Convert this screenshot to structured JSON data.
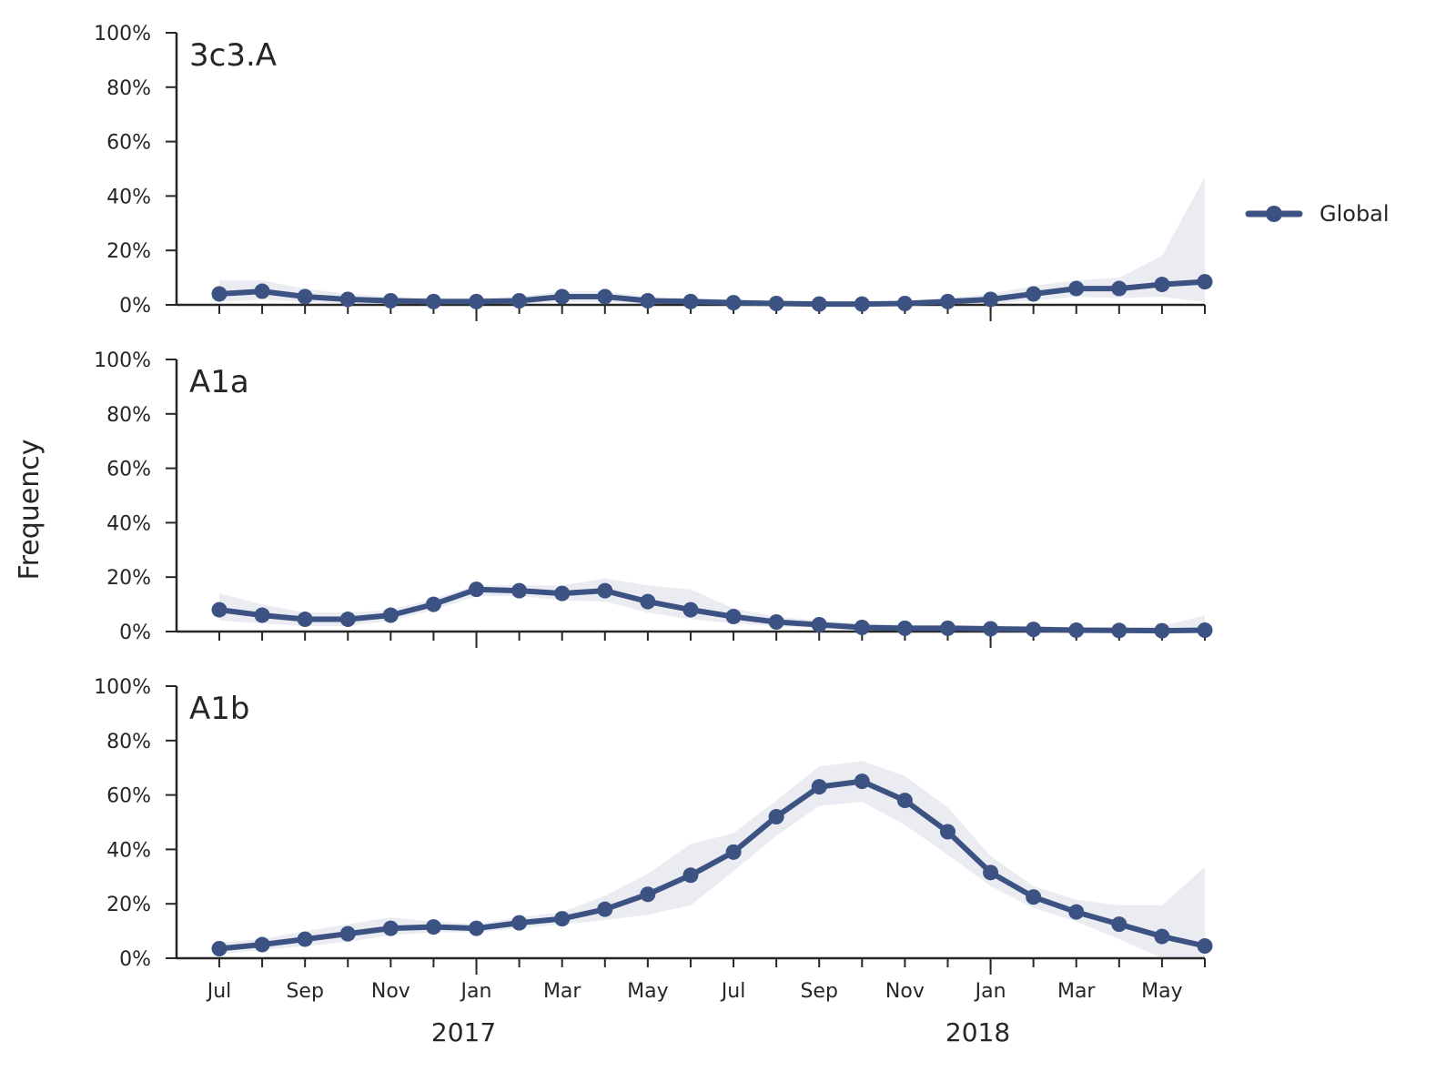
{
  "figure": {
    "ylabel": "Frequency",
    "legend": {
      "label": "Global",
      "placement": "right"
    },
    "colors": {
      "line": "#3c5282",
      "band": "#eaecf2",
      "axis": "#262626",
      "text": "#262626"
    }
  },
  "chart_data": [
    {
      "type": "line",
      "title": "3c3.A",
      "ylim": [
        0,
        100
      ],
      "yticks": [
        "0%",
        "20%",
        "40%",
        "60%",
        "80%",
        "100%"
      ],
      "x": [
        "2016-07",
        "2016-08",
        "2016-09",
        "2016-10",
        "2016-11",
        "2016-12",
        "2017-01",
        "2017-02",
        "2017-03",
        "2017-04",
        "2017-05",
        "2017-06",
        "2017-07",
        "2017-08",
        "2017-09",
        "2017-10",
        "2017-11",
        "2017-12",
        "2018-01",
        "2018-02",
        "2018-03",
        "2018-04",
        "2018-05",
        "2018-06"
      ],
      "series": [
        {
          "name": "Global",
          "values": [
            4,
            5,
            3,
            2,
            1.5,
            1.2,
            1.2,
            1.5,
            3,
            3,
            1.5,
            1.2,
            0.8,
            0.5,
            0.3,
            0.3,
            0.5,
            1.2,
            2,
            4,
            6,
            6,
            7.5,
            8.5
          ],
          "lower": [
            1,
            2,
            1,
            0.5,
            0.3,
            0.2,
            0.2,
            0.3,
            1,
            1,
            0.3,
            0.2,
            0.1,
            0,
            0,
            0,
            0,
            0.3,
            0.5,
            1.5,
            3,
            2.5,
            3,
            1
          ],
          "upper": [
            9,
            9,
            6,
            4,
            3,
            2.5,
            2.5,
            3,
            5,
            5,
            3,
            2.5,
            2,
            1.2,
            1,
            1,
            1.5,
            2.5,
            4,
            7,
            9,
            10,
            18,
            47
          ]
        }
      ]
    },
    {
      "type": "line",
      "title": "A1a",
      "ylim": [
        0,
        100
      ],
      "yticks": [
        "0%",
        "20%",
        "40%",
        "60%",
        "80%",
        "100%"
      ],
      "x": [
        "2016-07",
        "2016-08",
        "2016-09",
        "2016-10",
        "2016-11",
        "2016-12",
        "2017-01",
        "2017-02",
        "2017-03",
        "2017-04",
        "2017-05",
        "2017-06",
        "2017-07",
        "2017-08",
        "2017-09",
        "2017-10",
        "2017-11",
        "2017-12",
        "2018-01",
        "2018-02",
        "2018-03",
        "2018-04",
        "2018-05",
        "2018-06"
      ],
      "series": [
        {
          "name": "Global",
          "values": [
            8,
            6,
            4.5,
            4.5,
            6,
            10,
            15.5,
            15,
            14,
            15,
            11,
            8,
            5.5,
            3.5,
            2.5,
            1.5,
            1.2,
            1.2,
            1,
            0.8,
            0.5,
            0.4,
            0.3,
            0.5
          ],
          "lower": [
            4,
            3,
            2,
            2,
            4,
            8,
            13,
            13,
            11.5,
            11,
            7,
            4.5,
            3,
            2,
            1,
            0.5,
            0.3,
            0.3,
            0.2,
            0.1,
            0,
            0,
            0,
            0
          ],
          "upper": [
            14,
            10,
            7,
            7,
            8,
            12,
            17,
            17,
            17,
            19.5,
            17,
            15.5,
            8.5,
            5.5,
            4,
            3,
            2.5,
            2.5,
            2,
            2,
            1.5,
            1.5,
            2,
            6
          ]
        }
      ]
    },
    {
      "type": "line",
      "title": "A1b",
      "ylim": [
        0,
        100
      ],
      "yticks": [
        "0%",
        "20%",
        "40%",
        "60%",
        "80%",
        "100%"
      ],
      "x": [
        "2016-07",
        "2016-08",
        "2016-09",
        "2016-10",
        "2016-11",
        "2016-12",
        "2017-01",
        "2017-02",
        "2017-03",
        "2017-04",
        "2017-05",
        "2017-06",
        "2017-07",
        "2017-08",
        "2017-09",
        "2017-10",
        "2017-11",
        "2017-12",
        "2018-01",
        "2018-02",
        "2018-03",
        "2018-04",
        "2018-05",
        "2018-06"
      ],
      "series": [
        {
          "name": "Global",
          "values": [
            3.5,
            5,
            7,
            9,
            11,
            11.5,
            11,
            13,
            14.5,
            18,
            23.5,
            30.5,
            39,
            52,
            63,
            65,
            58,
            46.5,
            31.5,
            22.5,
            17,
            12.5,
            8,
            4.5
          ],
          "lower": [
            1.5,
            3,
            4.5,
            6,
            8.5,
            9.5,
            9.5,
            11,
            12.5,
            14,
            16,
            19.5,
            32,
            45,
            56,
            57.5,
            49,
            38,
            26.5,
            18.5,
            13.5,
            7,
            0,
            0
          ],
          "upper": [
            6,
            7,
            10,
            12.5,
            15,
            13.5,
            12.5,
            15,
            17,
            23,
            31,
            42,
            46,
            58,
            70.5,
            72.5,
            67,
            55.5,
            37.5,
            26.5,
            21.5,
            19.5,
            19.5,
            33.5
          ]
        }
      ]
    }
  ],
  "xaxis": {
    "month_labels": [
      {
        "index": 0,
        "label": "Jul"
      },
      {
        "index": 2,
        "label": "Sep"
      },
      {
        "index": 4,
        "label": "Nov"
      },
      {
        "index": 6,
        "label": "Jan"
      },
      {
        "index": 8,
        "label": "Mar"
      },
      {
        "index": 10,
        "label": "May"
      },
      {
        "index": 12,
        "label": "Jul"
      },
      {
        "index": 14,
        "label": "Sep"
      },
      {
        "index": 16,
        "label": "Nov"
      },
      {
        "index": 18,
        "label": "Jan"
      },
      {
        "index": 20,
        "label": "Mar"
      },
      {
        "index": 22,
        "label": "May"
      }
    ],
    "year_labels": [
      {
        "index": 6,
        "label": "2017"
      },
      {
        "index": 18,
        "label": "2018"
      }
    ]
  }
}
